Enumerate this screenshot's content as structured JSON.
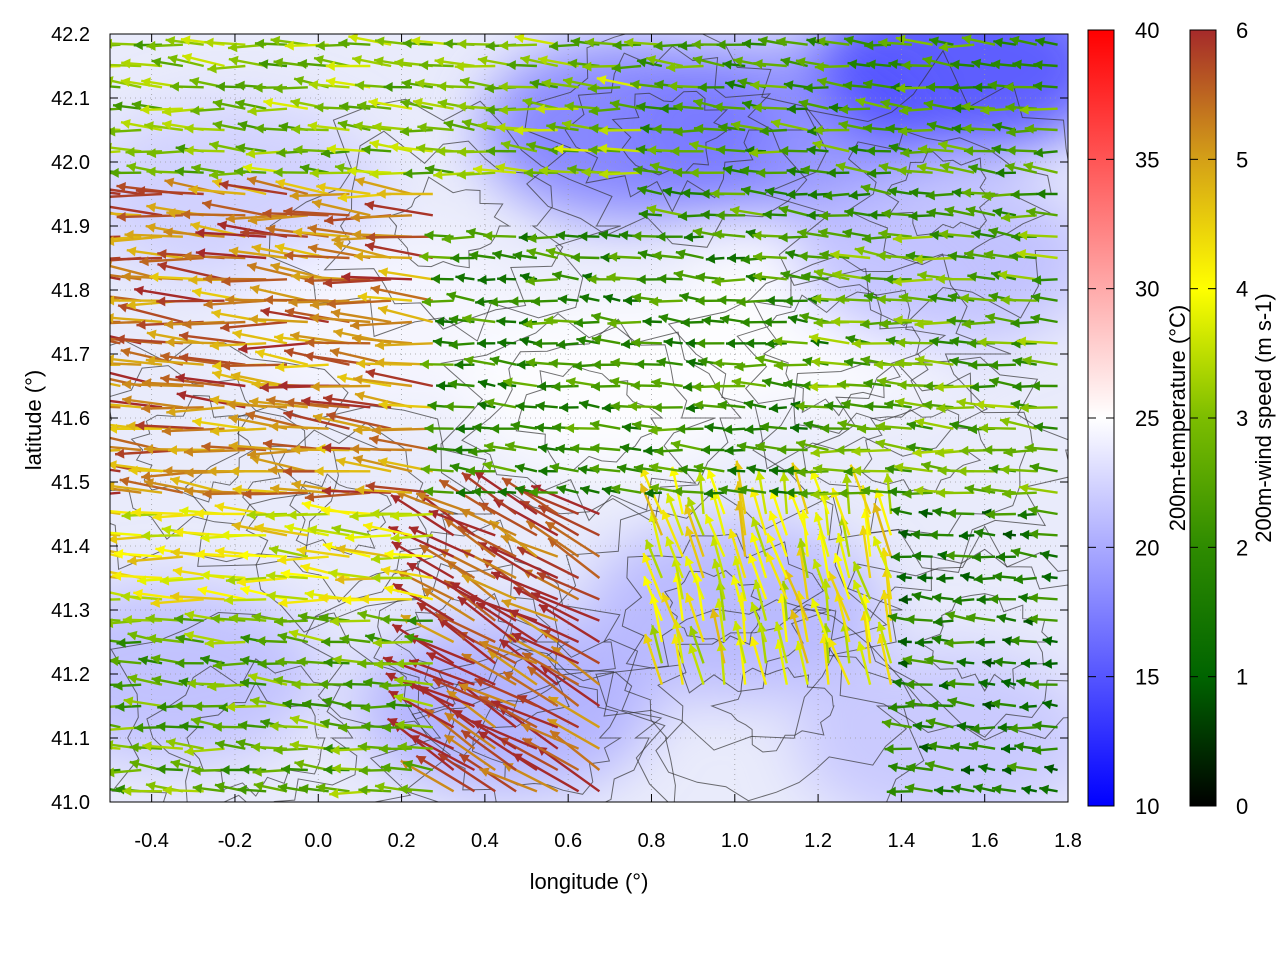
{
  "chart_data": {
    "type": "vector-field",
    "xlabel": "longitude (°)",
    "ylabel": "latitude (°)",
    "xlim": [
      -0.5,
      1.8
    ],
    "ylim": [
      41.0,
      42.2
    ],
    "xticks": [
      "-0.4",
      "-0.2",
      "0.0",
      "0.2",
      "0.4",
      "0.6",
      "0.8",
      "1.0",
      "1.2",
      "1.4",
      "1.6",
      "1.8"
    ],
    "yticks": [
      "41.0",
      "41.1",
      "41.2",
      "41.3",
      "41.4",
      "41.5",
      "41.6",
      "41.7",
      "41.8",
      "41.9",
      "42.0",
      "42.1",
      "42.2"
    ],
    "grid": true,
    "background_field": {
      "name": "200m-temperature",
      "colorbar_label": "200m-temperature (°C)",
      "range": [
        10,
        40
      ],
      "ticks": [
        "10",
        "15",
        "20",
        "25",
        "30",
        "35",
        "40"
      ],
      "colors": {
        "low": "#0000ff",
        "mid": "#ffffff",
        "high": "#ff0000"
      },
      "regions": [
        {
          "center": [
            -0.2,
            41.95
          ],
          "value": 22
        },
        {
          "center": [
            0.15,
            41.75
          ],
          "value": 24.5
        },
        {
          "center": [
            0.7,
            41.65
          ],
          "value": 25
        },
        {
          "center": [
            1.2,
            41.75
          ],
          "value": 25
        },
        {
          "center": [
            1.1,
            42.05
          ],
          "value": 18
        },
        {
          "center": [
            1.55,
            42.15
          ],
          "value": 14
        },
        {
          "center": [
            0.75,
            42.05
          ],
          "value": 17
        },
        {
          "center": [
            1.5,
            41.85
          ],
          "value": 21
        },
        {
          "center": [
            -0.35,
            41.2
          ],
          "value": 21
        },
        {
          "center": [
            0.45,
            41.15
          ],
          "value": 20
        },
        {
          "center": [
            1.0,
            41.3
          ],
          "value": 20.5
        },
        {
          "center": [
            1.5,
            41.1
          ],
          "value": 21.5
        }
      ]
    },
    "vector_field": {
      "name": "200m-wind speed",
      "colorbar_label": "200m-wind speed (m s-1)",
      "range": [
        0,
        6
      ],
      "ticks": [
        "0",
        "1",
        "2",
        "3",
        "4",
        "5",
        "6"
      ],
      "colors": [
        "#000000",
        "#006400",
        "#2e8b00",
        "#7cbd00",
        "#ffff00",
        "#d4a017",
        "#a52a2a"
      ],
      "regions": [
        {
          "lon": [
            -0.5,
            0.3
          ],
          "lat": [
            41.45,
            41.95
          ],
          "speed": 5.3,
          "direction": "west"
        },
        {
          "lon": [
            -0.5,
            0.3
          ],
          "lat": [
            41.3,
            41.45
          ],
          "speed": 4.0,
          "direction": "west"
        },
        {
          "lon": [
            -0.5,
            0.3
          ],
          "lat": [
            41.0,
            41.3
          ],
          "speed": 2.6,
          "direction": "west"
        },
        {
          "lon": [
            0.2,
            0.7
          ],
          "lat": [
            41.0,
            41.45
          ],
          "speed": 5.8,
          "direction": "northwest"
        },
        {
          "lon": [
            -0.5,
            0.8
          ],
          "lat": [
            41.95,
            42.2
          ],
          "speed": 3.0,
          "direction": "west"
        },
        {
          "lon": [
            0.3,
            1.25
          ],
          "lat": [
            41.45,
            41.9
          ],
          "speed": 2.0,
          "direction": "west"
        },
        {
          "lon": [
            0.8,
            1.8
          ],
          "lat": [
            41.9,
            42.2
          ],
          "speed": 2.3,
          "direction": "west"
        },
        {
          "lon": [
            1.25,
            1.8
          ],
          "lat": [
            41.45,
            41.9
          ],
          "speed": 2.6,
          "direction": "west"
        },
        {
          "lon": [
            0.8,
            1.4
          ],
          "lat": [
            41.15,
            41.45
          ],
          "speed": 4.0,
          "direction": "north"
        },
        {
          "lon": [
            1.4,
            1.8
          ],
          "lat": [
            41.0,
            41.45
          ],
          "speed": 1.6,
          "direction": "west"
        }
      ]
    }
  }
}
